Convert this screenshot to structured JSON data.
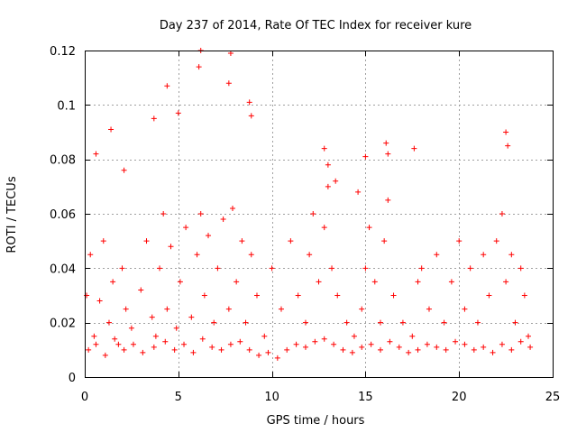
{
  "chart_data": {
    "type": "scatter",
    "title": "Day 237 of 2014, Rate Of TEC Index for receiver kure",
    "xlabel": "GPS time / hours",
    "ylabel": "ROTI / TECUs",
    "xlim": [
      0,
      25
    ],
    "ylim": [
      0,
      0.12
    ],
    "x_ticks": [
      0,
      5,
      10,
      15,
      20,
      25
    ],
    "y_ticks": [
      0,
      0.02,
      0.04,
      0.06,
      0.08,
      0.1,
      0.12
    ],
    "x_tick_labels": [
      "0",
      "5",
      "10",
      "15",
      "20",
      "25"
    ],
    "y_tick_labels": [
      "0",
      "0.02",
      "0.04",
      "0.06",
      "0.08",
      "0.1",
      "0.12"
    ],
    "grid": true,
    "marker": "+",
    "color": "#ff0000",
    "series": [
      {
        "x": [
          0.1,
          0.3,
          0.5,
          0.8,
          1.0,
          1.3,
          1.5,
          1.8,
          2.0,
          2.2,
          2.5,
          3.0,
          3.3,
          3.6,
          3.8,
          4.0,
          4.2,
          4.4,
          4.6,
          4.9,
          5.1,
          5.4,
          5.7,
          6.0,
          6.2,
          6.4,
          6.6,
          6.9,
          7.1,
          7.4,
          7.7,
          7.9,
          8.1,
          8.4,
          8.6,
          8.9,
          9.2,
          9.6,
          10.0,
          10.5,
          11.0,
          11.4,
          11.8,
          12.0,
          12.2,
          12.5,
          12.8,
          13.0,
          13.2,
          13.5,
          14.0,
          14.4,
          14.8,
          15.0,
          15.2,
          15.5,
          15.8,
          16.0,
          16.2,
          16.5,
          17.0,
          17.5,
          17.8,
          18.0,
          18.4,
          18.8,
          19.2,
          19.6,
          20.0,
          20.3,
          20.6,
          21.0,
          21.3,
          21.6,
          22.0,
          22.3,
          22.5,
          22.8,
          23.0,
          23.3,
          23.5,
          23.7,
          0.2,
          0.6,
          1.1,
          1.6,
          2.1,
          2.6,
          3.1,
          3.7,
          4.3,
          4.8,
          5.3,
          5.8,
          6.3,
          6.8,
          7.3,
          7.8,
          8.3,
          8.8,
          9.3,
          9.8,
          10.3,
          10.8,
          11.3,
          11.8,
          12.3,
          12.8,
          13.3,
          13.8,
          14.3,
          14.8,
          15.3,
          15.8,
          16.3,
          16.8,
          17.3,
          17.8,
          18.3,
          18.8,
          19.3,
          19.8,
          20.3,
          20.8,
          21.3,
          21.8,
          22.3,
          22.8,
          23.3,
          23.8,
          6.2,
          6.1,
          7.8,
          7.7,
          8.8,
          8.9,
          4.4,
          5.0,
          12.8,
          13.0,
          15.0,
          16.1,
          16.2,
          17.6,
          22.5,
          22.6,
          1.4,
          0.6,
          3.7,
          2.1,
          14.6,
          13.4
        ],
        "y": [
          0.03,
          0.045,
          0.015,
          0.028,
          0.05,
          0.02,
          0.035,
          0.012,
          0.04,
          0.025,
          0.018,
          0.032,
          0.05,
          0.022,
          0.015,
          0.04,
          0.06,
          0.025,
          0.048,
          0.018,
          0.035,
          0.055,
          0.022,
          0.045,
          0.06,
          0.03,
          0.052,
          0.02,
          0.04,
          0.058,
          0.025,
          0.062,
          0.035,
          0.05,
          0.02,
          0.045,
          0.03,
          0.015,
          0.04,
          0.025,
          0.05,
          0.03,
          0.02,
          0.045,
          0.06,
          0.035,
          0.055,
          0.07,
          0.04,
          0.03,
          0.02,
          0.015,
          0.025,
          0.04,
          0.055,
          0.035,
          0.02,
          0.05,
          0.065,
          0.03,
          0.02,
          0.015,
          0.035,
          0.04,
          0.025,
          0.045,
          0.02,
          0.035,
          0.05,
          0.025,
          0.04,
          0.02,
          0.045,
          0.03,
          0.05,
          0.06,
          0.035,
          0.045,
          0.02,
          0.04,
          0.03,
          0.015,
          0.01,
          0.012,
          0.008,
          0.014,
          0.01,
          0.012,
          0.009,
          0.011,
          0.013,
          0.01,
          0.012,
          0.009,
          0.014,
          0.011,
          0.01,
          0.012,
          0.013,
          0.01,
          0.008,
          0.009,
          0.007,
          0.01,
          0.012,
          0.011,
          0.013,
          0.014,
          0.012,
          0.01,
          0.009,
          0.011,
          0.012,
          0.01,
          0.013,
          0.011,
          0.009,
          0.01,
          0.012,
          0.011,
          0.01,
          0.013,
          0.012,
          0.01,
          0.011,
          0.009,
          0.012,
          0.01,
          0.013,
          0.011,
          0.12,
          0.114,
          0.119,
          0.108,
          0.101,
          0.096,
          0.107,
          0.097,
          0.084,
          0.078,
          0.081,
          0.086,
          0.082,
          0.084,
          0.09,
          0.085,
          0.091,
          0.082,
          0.095,
          0.076,
          0.068,
          0.072
        ]
      }
    ]
  }
}
